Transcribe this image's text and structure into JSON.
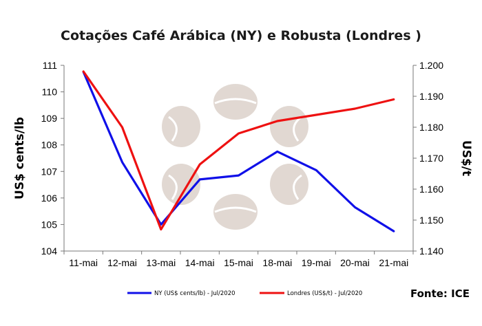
{
  "chart_data": {
    "type": "line",
    "title": "Cotações Café Arábica (NY) e Robusta (Londres )",
    "ylabel_left": "US$ cents/lb",
    "ylabel_right": "US$/t",
    "source": "Fonte: ICE",
    "categories": [
      "11-mai",
      "12-mai",
      "13-mai",
      "14-mai",
      "15-mai",
      "18-mai",
      "19-mai",
      "20-mai",
      "21-mai"
    ],
    "y_left": {
      "lim": [
        104,
        111
      ],
      "ticks": [
        "104",
        "105",
        "106",
        "107",
        "108",
        "109",
        "110",
        "111"
      ]
    },
    "y_right": {
      "lim": [
        1.14,
        1.2
      ],
      "ticks": [
        "1.140",
        "1.150",
        "1.160",
        "1.170",
        "1.180",
        "1.190",
        "1.200"
      ]
    },
    "series": [
      {
        "name": "NY (US$ cents/lb) - Jul/2020",
        "axis": "left",
        "color": "#1010e8",
        "values": [
          110.75,
          107.35,
          105.0,
          106.7,
          106.85,
          107.75,
          107.05,
          105.65,
          104.75
        ]
      },
      {
        "name": "Londres (US$/t) - Jul/2020",
        "axis": "right",
        "color": "#ee1111",
        "values": [
          1.198,
          1.18,
          1.147,
          1.168,
          1.178,
          1.182,
          1.184,
          1.186,
          1.189
        ]
      }
    ],
    "grid": false,
    "legend_position": "bottom"
  }
}
